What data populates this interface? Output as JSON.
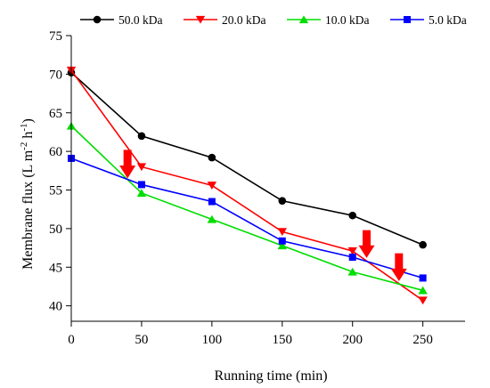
{
  "chart_data": {
    "type": "line",
    "title": "",
    "xlabel": "Running time (min)",
    "ylabel_main": "Membrane flux (L m",
    "ylabel_sup1": "-2",
    "ylabel_mid": " h",
    "ylabel_sup2": "-1",
    "ylabel_end": ")",
    "xlim": [
      0,
      280
    ],
    "ylim": [
      38,
      75
    ],
    "xticks": [
      0,
      50,
      100,
      150,
      200,
      250
    ],
    "yticks": [
      40,
      45,
      50,
      55,
      60,
      65,
      70,
      75
    ],
    "legend_position": "top",
    "grid": false,
    "x": [
      0,
      50,
      100,
      150,
      200,
      250
    ],
    "series": [
      {
        "name": "50.0 kDa",
        "color": "#000000",
        "marker": "circle",
        "values": [
          70.2,
          62.0,
          59.2,
          53.6,
          51.7,
          47.9
        ]
      },
      {
        "name": "20.0 kDa",
        "color": "#ff0000",
        "marker": "triangle-down",
        "values": [
          70.5,
          58.0,
          55.6,
          49.6,
          47.1,
          40.7
        ]
      },
      {
        "name": "10.0 kDa",
        "color": "#00dd00",
        "marker": "triangle-up",
        "values": [
          63.3,
          54.6,
          51.2,
          47.8,
          44.4,
          42.0
        ]
      },
      {
        "name": "5.0 kDa",
        "color": "#0000ff",
        "marker": "square",
        "values": [
          59.1,
          55.7,
          53.5,
          48.4,
          46.3,
          43.6
        ]
      }
    ],
    "annotations": [
      {
        "type": "down-arrow",
        "color": "#ff0000",
        "x": 40,
        "y_top": 60.2,
        "y_bottom": 56.5
      },
      {
        "type": "down-arrow",
        "color": "#ff0000",
        "x": 210,
        "y_top": 49.8,
        "y_bottom": 46.2
      },
      {
        "type": "down-arrow",
        "color": "#ff0000",
        "x": 233,
        "y_top": 46.8,
        "y_bottom": 43.2
      }
    ]
  }
}
